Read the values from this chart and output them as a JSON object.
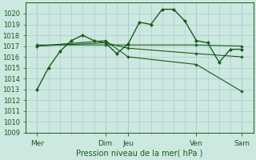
{
  "background_color": "#cce8e0",
  "grid_color": "#aacccc",
  "line_color": "#1a5c1a",
  "xlabel": "Pression niveau de la mer( hPa )",
  "ylim": [
    1009,
    1021
  ],
  "xlim": [
    0,
    20
  ],
  "yticks": [
    1009,
    1010,
    1011,
    1012,
    1013,
    1014,
    1015,
    1016,
    1017,
    1018,
    1019,
    1020
  ],
  "xtick_positions": [
    1,
    7,
    9,
    15,
    19
  ],
  "xtick_labels": [
    "Mer",
    "Dim",
    "Jeu",
    "Ven",
    "Sam"
  ],
  "series": [
    {
      "x": [
        1,
        2,
        3,
        4,
        5,
        6,
        7,
        8,
        9,
        10,
        11,
        12,
        13,
        14,
        15,
        16,
        17,
        18,
        19
      ],
      "y": [
        1013,
        1015,
        1016.5,
        1017.5,
        1018.0,
        1017.5,
        1017.3,
        1016.3,
        1017.2,
        1019.2,
        1019.0,
        1020.4,
        1020.4,
        1019.3,
        1017.5,
        1017.3,
        1015.5,
        1016.7,
        1016.7
      ]
    },
    {
      "x": [
        1,
        7,
        9,
        15,
        19
      ],
      "y": [
        1017.1,
        1017.1,
        1017.1,
        1017.1,
        1017.0
      ]
    },
    {
      "x": [
        1,
        7,
        9,
        15,
        19
      ],
      "y": [
        1017.0,
        1017.3,
        1016.8,
        1016.3,
        1016.0
      ]
    },
    {
      "x": [
        1,
        7,
        9,
        15,
        19
      ],
      "y": [
        1017.0,
        1017.5,
        1016.0,
        1015.3,
        1012.8
      ]
    }
  ],
  "xlabel_fontsize": 7,
  "ytick_fontsize": 6,
  "xtick_fontsize": 6.5
}
